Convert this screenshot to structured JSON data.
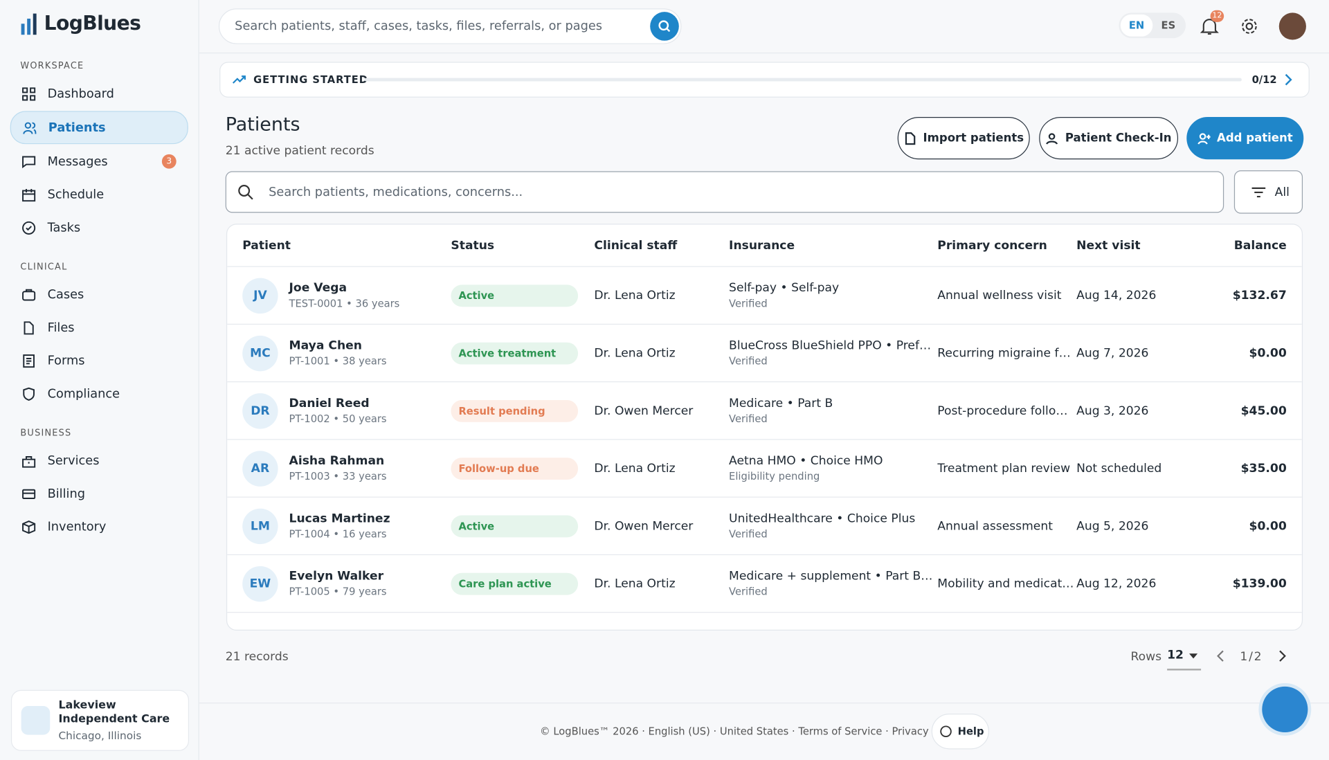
{
  "sidebar": {
    "brand": "LogBlues",
    "sections": [
      {
        "title": "WORKSPACE",
        "items": [
          {
            "label": "Dashboard",
            "icon": "grid"
          },
          {
            "label": "Patients",
            "icon": "users",
            "active": true
          },
          {
            "label": "Messages",
            "icon": "chat",
            "badge": "3"
          },
          {
            "label": "Schedule",
            "icon": "cal"
          },
          {
            "label": "Tasks",
            "icon": "check"
          }
        ]
      },
      {
        "title": "CLINICAL",
        "items": [
          {
            "label": "Cases",
            "icon": "case"
          },
          {
            "label": "Files",
            "icon": "file"
          },
          {
            "label": "Forms",
            "icon": "form"
          },
          {
            "label": "Compliance",
            "icon": "shield"
          }
        ]
      },
      {
        "title": "BUSINESS",
        "items": [
          {
            "label": "Services",
            "icon": "bag"
          },
          {
            "label": "Billing",
            "icon": "card"
          },
          {
            "label": "Inventory",
            "icon": "box"
          }
        ]
      }
    ],
    "org": {
      "name": "Lakeview Independent Care",
      "location": "Chicago, Illinois"
    }
  },
  "topbar": {
    "search_placeholder": "Search patients, staff, cases, tasks, files, referrals, or pages",
    "languages": [
      "EN",
      "ES"
    ],
    "notifications": "12"
  },
  "getting_started": {
    "label": "GETTING STARTED",
    "progress": "0/12"
  },
  "page": {
    "title": "Patients",
    "subtitle": "21 active patient records",
    "buttons": [
      "Import patients",
      "Patient Check-In",
      "Add patient"
    ],
    "search_placeholder": "Search patients, medications, concerns...",
    "filter": "All"
  },
  "table": {
    "columns": [
      "Patient",
      "Status",
      "Clinical staff",
      "Insurance",
      "Primary concern",
      "Next visit",
      "Balance"
    ],
    "rows": [
      {
        "initials": "JV",
        "name": "Joe Vega",
        "id": "TEST-0001",
        "age": "36 years",
        "status": "Active",
        "tone": "success",
        "staff": "Dr. Lena Ortiz",
        "plan": "Self-pay",
        "tier": "Self-pay",
        "verification": "Verified",
        "concern": "Annual wellness visit",
        "next_visit": "Aug 14, 2026",
        "balance": "$132.67"
      },
      {
        "initials": "MC",
        "name": "Maya Chen",
        "id": "PT-1001",
        "age": "38 years",
        "status": "Active treatment",
        "tone": "success",
        "staff": "Dr. Lena Ortiz",
        "plan": "BlueCross BlueShield PPO",
        "tier": "Preferred",
        "verification": "Verified",
        "concern": "Recurring migraine follow-up",
        "next_visit": "Aug 7, 2026",
        "balance": "$0.00"
      },
      {
        "initials": "DR",
        "name": "Daniel Reed",
        "id": "PT-1002",
        "age": "50 years",
        "status": "Result pending",
        "tone": "warning",
        "staff": "Dr. Owen Mercer",
        "plan": "Medicare",
        "tier": "Part B",
        "verification": "Verified",
        "concern": "Post-procedure follow-up",
        "next_visit": "Aug 3, 2026",
        "balance": "$45.00"
      },
      {
        "initials": "AR",
        "name": "Aisha Rahman",
        "id": "PT-1003",
        "age": "33 years",
        "status": "Follow-up due",
        "tone": "warning",
        "staff": "Dr. Lena Ortiz",
        "plan": "Aetna HMO",
        "tier": "Choice HMO",
        "verification": "Eligibility pending",
        "concern": "Treatment plan review",
        "next_visit": "Not scheduled",
        "balance": "$35.00"
      },
      {
        "initials": "LM",
        "name": "Lucas Martinez",
        "id": "PT-1004",
        "age": "16 years",
        "status": "Active",
        "tone": "success",
        "staff": "Dr. Owen Mercer",
        "plan": "UnitedHealthcare",
        "tier": "Choice Plus",
        "verification": "Verified",
        "concern": "Annual assessment",
        "next_visit": "Aug 5, 2026",
        "balance": "$0.00"
      },
      {
        "initials": "EW",
        "name": "Evelyn Walker",
        "id": "PT-1005",
        "age": "79 years",
        "status": "Care plan active",
        "tone": "success",
        "staff": "Dr. Lena Ortiz",
        "plan": "Medicare + supplement",
        "tier": "Part B + Plan G",
        "verification": "Verified",
        "concern": "Mobility and medication review",
        "next_visit": "Aug 12, 2026",
        "balance": "$139.00"
      }
    ]
  },
  "pagination": {
    "records": "21 records",
    "rows_label": "Rows",
    "rows_value": "12",
    "page": "1 / 2"
  },
  "footer": {
    "copyright": "© LogBlues™ 2026 · English (US) · United States · Terms of Service · Privacy Policy ·",
    "help": "Help"
  }
}
